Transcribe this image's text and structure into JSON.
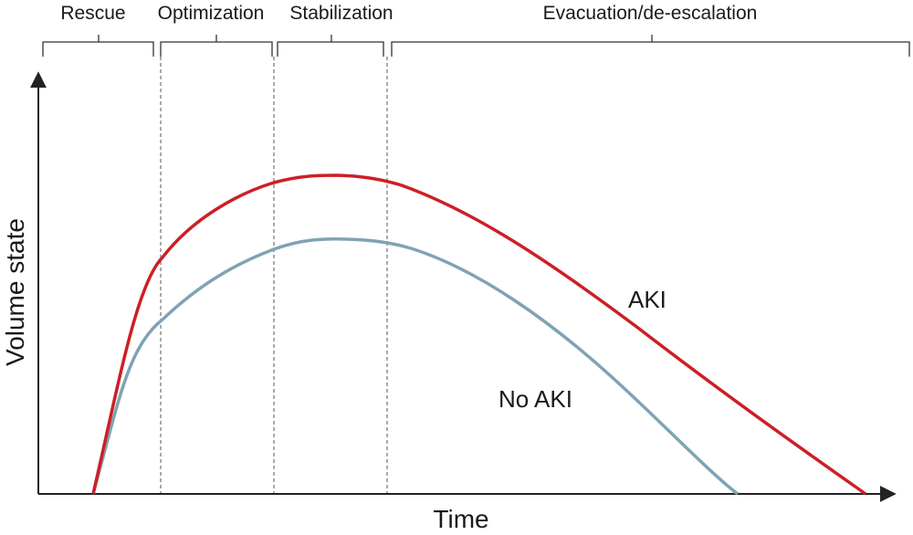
{
  "phases": [
    {
      "label": "Rescue"
    },
    {
      "label": "Optimization"
    },
    {
      "label": "Stabilization"
    },
    {
      "label": "Evacuation/de-escalation"
    }
  ],
  "axes": {
    "x_label": "Time",
    "y_label": "Volume state"
  },
  "curves": [
    {
      "label": "AKI",
      "color": "#cc1f26"
    },
    {
      "label": "No AKI",
      "color": "#7fa3b4"
    }
  ],
  "colors": {
    "axis": "#222222",
    "divider": "#555555",
    "bracket": "#333333"
  }
}
